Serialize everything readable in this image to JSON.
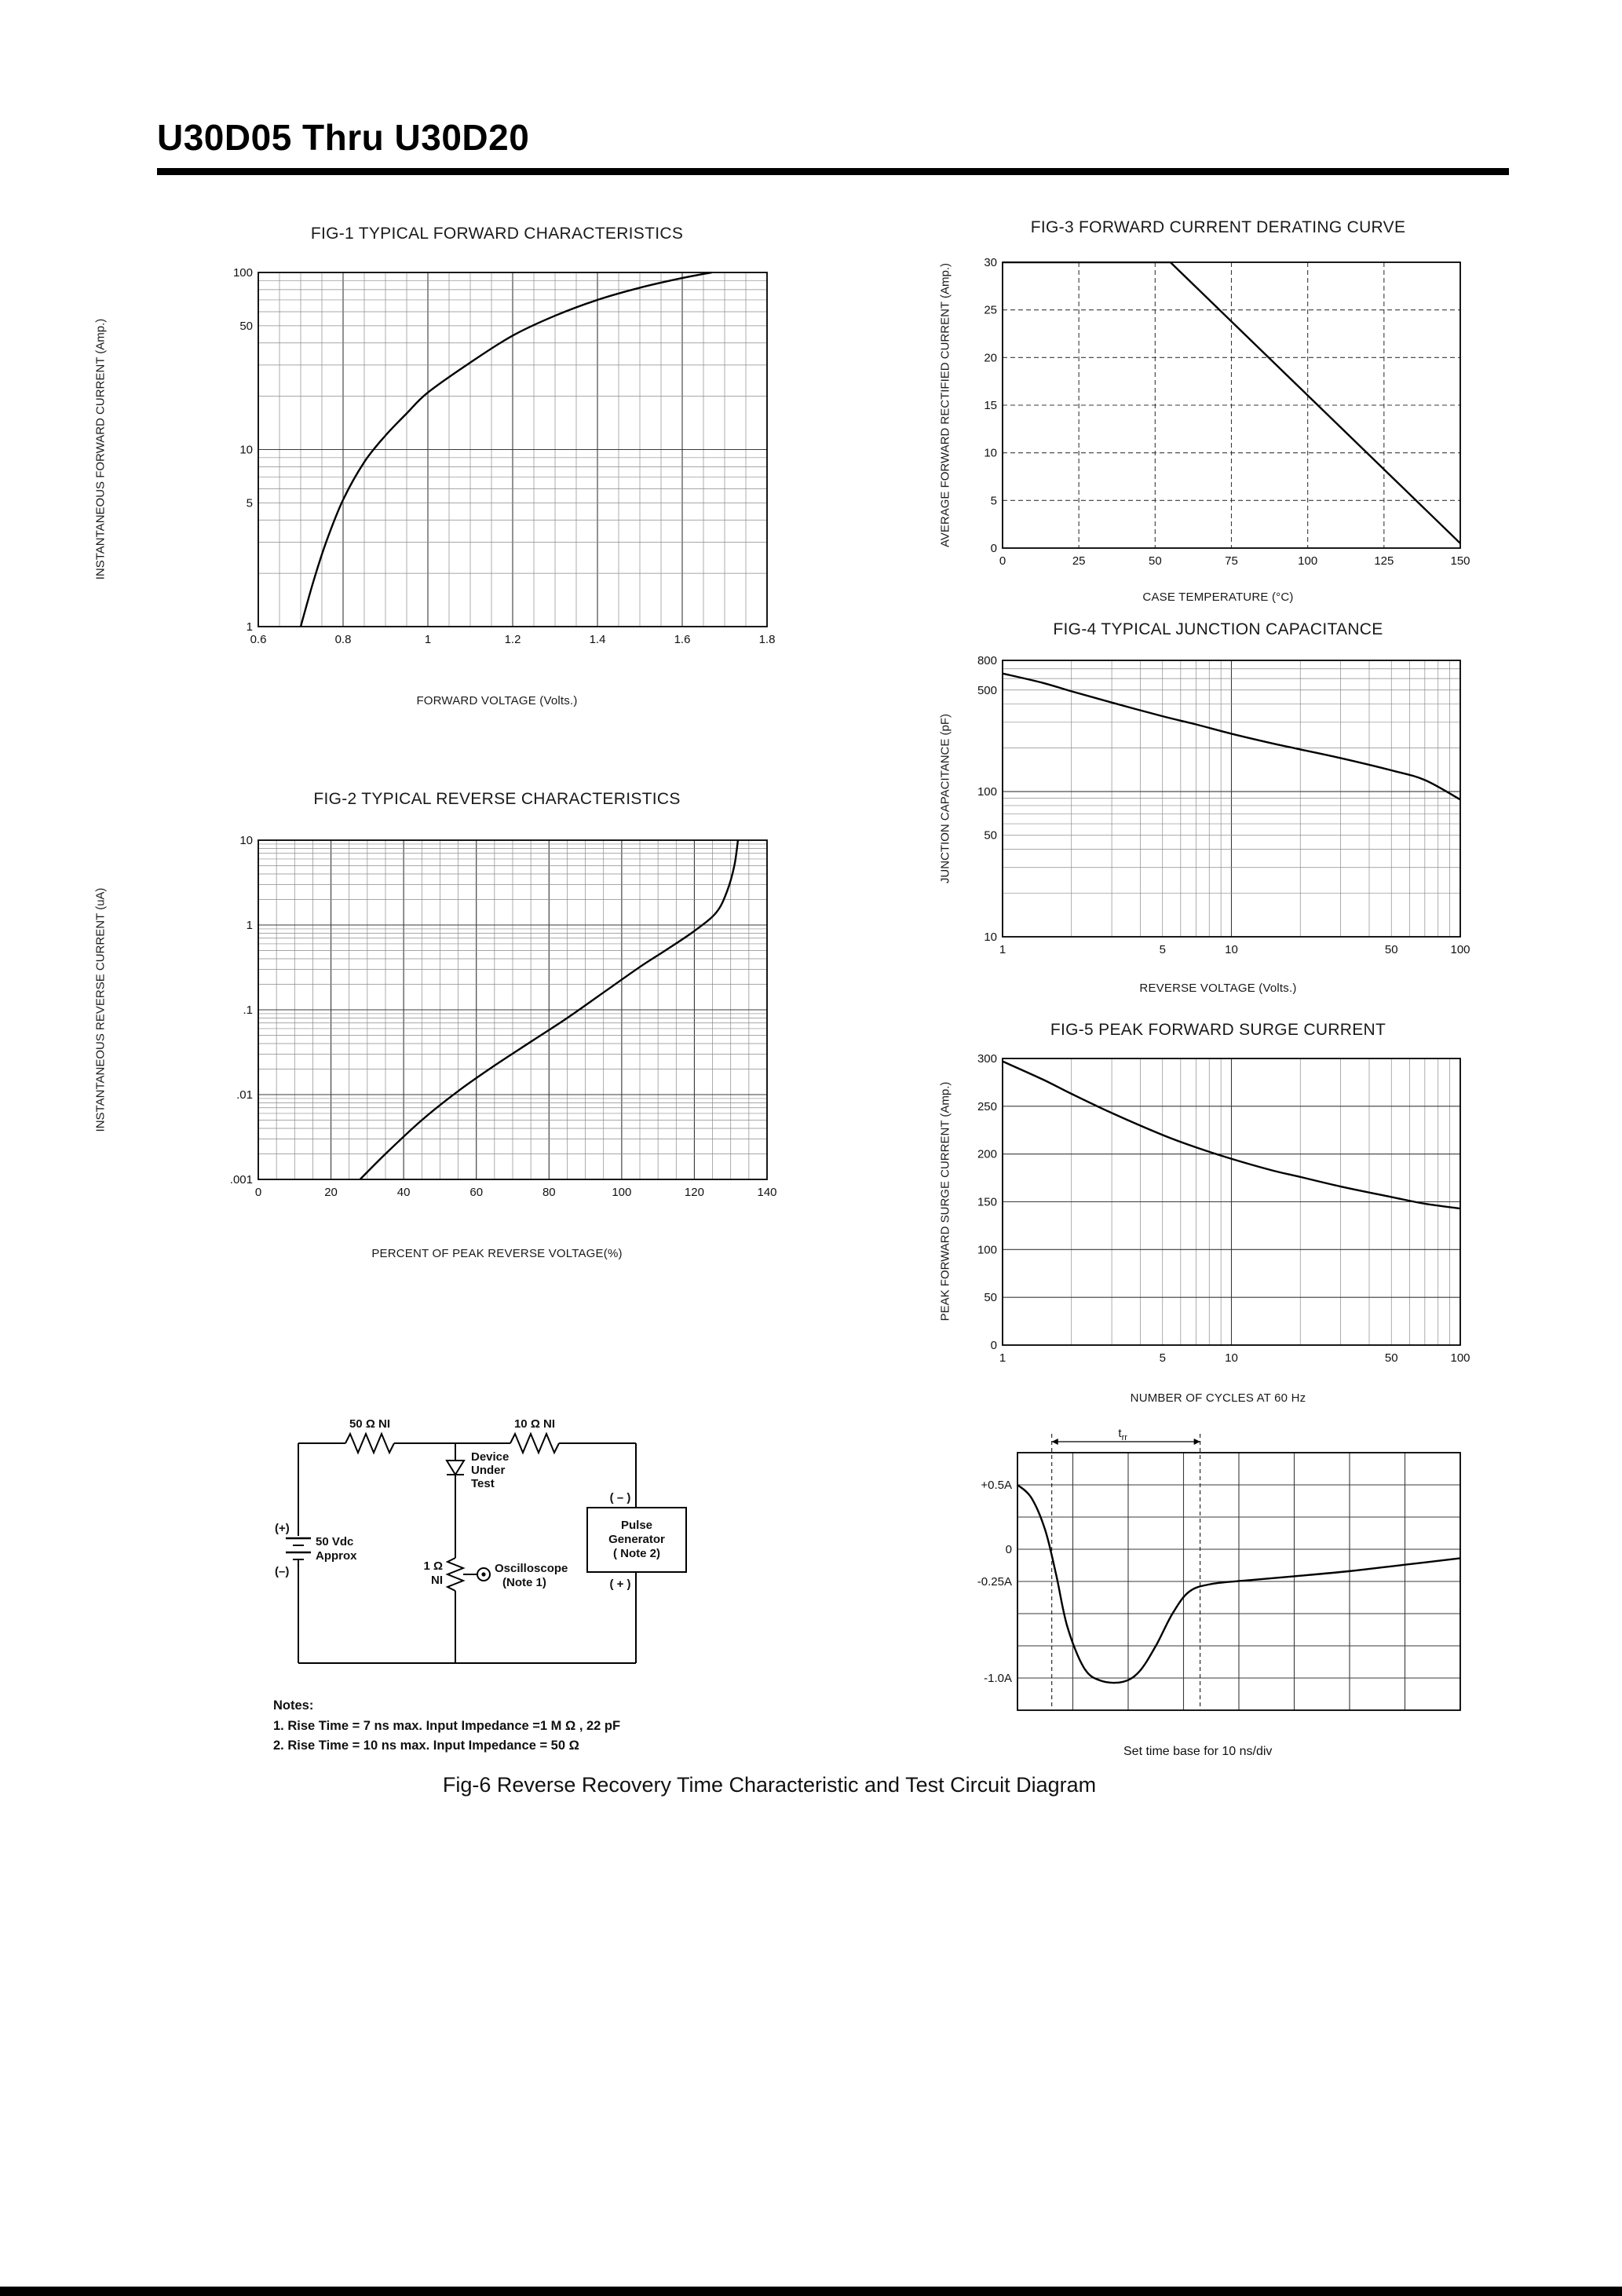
{
  "header": {
    "title": "U30D05 Thru U30D20"
  },
  "fig6": {
    "caption": "Fig-6 Reverse Recovery Time Characteristic and Test Circuit Diagram",
    "set_time_base": "Set time base for 10  ns/div"
  },
  "notes": {
    "heading": "Notes:",
    "line1": "1. Rise Time = 7 ns max. Input Impedance =1 M Ω , 22 pF",
    "line2": "2. Rise Time = 10 ns max. Input Impedance = 50 Ω"
  },
  "circuit": {
    "r1": "50 Ω  NI",
    "r2": "10 Ω  NI",
    "dut_line1": "Device",
    "dut_line2": "Under",
    "dut_line3": "Test",
    "plus": "(+)",
    "minus": "(–)",
    "vdc_line1": "50 Vdc",
    "vdc_line2": "Approx",
    "pg_minus": "( – )",
    "pg_line1": "Pulse",
    "pg_line2": "Generator",
    "pg_line3": "( Note 2)",
    "pg_plus": "( + )",
    "r3_line1": "1 Ω",
    "r3_line2": "NI",
    "osc_line1": "Oscilloscope",
    "osc_line2": "(Note 1)"
  },
  "chart_data": [
    {
      "id": "fig1",
      "type": "line",
      "title": "FIG-1 TYPICAL FORWARD CHARACTERISTICS",
      "xlabel": "FORWARD VOLTAGE (Volts.)",
      "ylabel": "INSTANTANEOUS FORWARD CURRENT (Amp.)",
      "x": {
        "scale": "linear",
        "min": 0.6,
        "max": 1.8,
        "grid": 0.2,
        "minor": 0.05,
        "ticks": [
          {
            "v": 0.6,
            "t": "0.6"
          },
          {
            "v": 0.8,
            "t": "0.8"
          },
          {
            "v": 1,
            "t": "1"
          },
          {
            "v": 1.2,
            "t": "1.2"
          },
          {
            "v": 1.4,
            "t": "1.4"
          },
          {
            "v": 1.6,
            "t": "1.6"
          },
          {
            "v": 1.8,
            "t": "1.8"
          }
        ]
      },
      "y": {
        "scale": "log",
        "min": 1,
        "max": 100,
        "ticks": [
          {
            "v": 100,
            "t": "100"
          },
          {
            "v": 50,
            "t": "50"
          },
          {
            "v": 10,
            "t": "10"
          },
          {
            "v": 5,
            "t": "5"
          },
          {
            "v": 1,
            "t": "1"
          }
        ]
      },
      "series": [
        {
          "name": "typical-forward-current",
          "points": [
            [
              0.7,
              1
            ],
            [
              0.73,
              1.8
            ],
            [
              0.76,
              3
            ],
            [
              0.8,
              5.2
            ],
            [
              0.85,
              8.5
            ],
            [
              0.9,
              12
            ],
            [
              0.95,
              16
            ],
            [
              1.0,
              21
            ],
            [
              1.1,
              31
            ],
            [
              1.2,
              44
            ],
            [
              1.3,
              57
            ],
            [
              1.4,
              70
            ],
            [
              1.5,
              82
            ],
            [
              1.6,
              93
            ],
            [
              1.67,
              100
            ]
          ]
        }
      ]
    },
    {
      "id": "fig2",
      "type": "line",
      "title": "FIG-2 TYPICAL REVERSE CHARACTERISTICS",
      "xlabel": "PERCENT OF PEAK REVERSE VOLTAGE(%)",
      "ylabel": "INSTANTANEOUS REVERSE CURRENT (uA)",
      "x": {
        "scale": "linear",
        "min": 0,
        "max": 140,
        "grid": 20,
        "minor": 5,
        "ticks": [
          {
            "v": 0,
            "t": "0"
          },
          {
            "v": 20,
            "t": "20"
          },
          {
            "v": 40,
            "t": "40"
          },
          {
            "v": 60,
            "t": "60"
          },
          {
            "v": 80,
            "t": "80"
          },
          {
            "v": 100,
            "t": "100"
          },
          {
            "v": 120,
            "t": "120"
          },
          {
            "v": 140,
            "t": "140"
          }
        ]
      },
      "y": {
        "scale": "log",
        "min": 0.001,
        "max": 10,
        "ticks": [
          {
            "v": 10,
            "t": "10"
          },
          {
            "v": 1,
            "t": "1"
          },
          {
            "v": 0.1,
            "t": ".1"
          },
          {
            "v": 0.01,
            "t": ".01"
          },
          {
            "v": 0.001,
            "t": ".001"
          }
        ]
      },
      "series": [
        {
          "name": "typical-reverse-current",
          "points": [
            [
              28,
              0.001
            ],
            [
              35,
              0.002
            ],
            [
              45,
              0.005
            ],
            [
              55,
              0.011
            ],
            [
              65,
              0.022
            ],
            [
              75,
              0.042
            ],
            [
              85,
              0.08
            ],
            [
              95,
              0.16
            ],
            [
              105,
              0.32
            ],
            [
              112,
              0.5
            ],
            [
              120,
              0.85
            ],
            [
              126,
              1.4
            ],
            [
              129,
              2.5
            ],
            [
              131,
              5
            ],
            [
              132,
              10
            ]
          ]
        }
      ]
    },
    {
      "id": "fig3",
      "type": "line",
      "grid_dash": true,
      "straight": true,
      "title": "FIG-3 FORWARD CURRENT DERATING CURVE",
      "xlabel": "CASE TEMPERATURE (°C)",
      "ylabel": "AVERAGE FORWARD RECTIFIED CURRENT (Amp.)",
      "x": {
        "scale": "linear",
        "min": 0,
        "max": 150,
        "grid": 25,
        "ticks": [
          {
            "v": 0,
            "t": "0"
          },
          {
            "v": 25,
            "t": "25"
          },
          {
            "v": 50,
            "t": "50"
          },
          {
            "v": 75,
            "t": "75"
          },
          {
            "v": 100,
            "t": "100"
          },
          {
            "v": 125,
            "t": "125"
          },
          {
            "v": 150,
            "t": "150"
          }
        ]
      },
      "y": {
        "scale": "linear",
        "min": 0,
        "max": 30,
        "grid": 5,
        "ticks": [
          {
            "v": 30,
            "t": "30"
          },
          {
            "v": 25,
            "t": "25"
          },
          {
            "v": 20,
            "t": "20"
          },
          {
            "v": 15,
            "t": "15"
          },
          {
            "v": 10,
            "t": "10"
          },
          {
            "v": 5,
            "t": "5"
          },
          {
            "v": 0,
            "t": "0"
          }
        ]
      },
      "series": [
        {
          "name": "derating-curve",
          "points": [
            [
              0,
              30
            ],
            [
              55,
              30
            ],
            [
              150,
              0.5
            ]
          ]
        }
      ]
    },
    {
      "id": "fig4",
      "type": "line",
      "title": "FIG-4 TYPICAL JUNCTION CAPACITANCE",
      "xlabel": "REVERSE VOLTAGE (Volts.)",
      "ylabel": "JUNCTION CAPACITANCE (pF)",
      "x": {
        "scale": "log",
        "min": 1,
        "max": 100,
        "ticks": [
          {
            "v": 1,
            "t": "1"
          },
          {
            "v": 5,
            "t": "5"
          },
          {
            "v": 10,
            "t": "10"
          },
          {
            "v": 50,
            "t": "50"
          },
          {
            "v": 100,
            "t": "100"
          }
        ]
      },
      "y": {
        "scale": "log",
        "min": 10,
        "max": 800,
        "ticks": [
          {
            "v": 800,
            "t": "800"
          },
          {
            "v": 500,
            "t": "500"
          },
          {
            "v": 100,
            "t": "100"
          },
          {
            "v": 50,
            "t": "50"
          },
          {
            "v": 10,
            "t": "10"
          }
        ]
      },
      "series": [
        {
          "name": "junction-capacitance",
          "points": [
            [
              1,
              650
            ],
            [
              1.5,
              560
            ],
            [
              2,
              490
            ],
            [
              3,
              410
            ],
            [
              5,
              330
            ],
            [
              7,
              290
            ],
            [
              10,
              250
            ],
            [
              15,
              215
            ],
            [
              20,
              195
            ],
            [
              30,
              170
            ],
            [
              50,
              140
            ],
            [
              70,
              120
            ],
            [
              100,
              88
            ]
          ]
        }
      ]
    },
    {
      "id": "fig5",
      "type": "line",
      "title": "FIG-5 PEAK FORWARD SURGE CURRENT",
      "xlabel": "NUMBER OF CYCLES AT 60 Hz",
      "ylabel": "PEAK FORWARD SURGE CURRENT (Amp.)",
      "x": {
        "scale": "log",
        "min": 1,
        "max": 100,
        "ticks": [
          {
            "v": 1,
            "t": "1"
          },
          {
            "v": 5,
            "t": "5"
          },
          {
            "v": 10,
            "t": "10"
          },
          {
            "v": 50,
            "t": "50"
          },
          {
            "v": 100,
            "t": "100"
          }
        ]
      },
      "y": {
        "scale": "linear",
        "min": 0,
        "max": 300,
        "grid": 50,
        "ticks": [
          {
            "v": 300,
            "t": "300"
          },
          {
            "v": 250,
            "t": "250"
          },
          {
            "v": 200,
            "t": "200"
          },
          {
            "v": 150,
            "t": "150"
          },
          {
            "v": 100,
            "t": "100"
          },
          {
            "v": 50,
            "t": "50"
          },
          {
            "v": 0,
            "t": "0"
          }
        ]
      },
      "series": [
        {
          "name": "surge-current",
          "points": [
            [
              1,
              297
            ],
            [
              1.5,
              278
            ],
            [
              2,
              263
            ],
            [
              3,
              243
            ],
            [
              5,
              220
            ],
            [
              7,
              207
            ],
            [
              10,
              195
            ],
            [
              15,
              183
            ],
            [
              20,
              176
            ],
            [
              30,
              166
            ],
            [
              50,
              155
            ],
            [
              70,
              148
            ],
            [
              100,
              143
            ]
          ]
        }
      ]
    },
    {
      "id": "fig6wave",
      "type": "line",
      "title": "",
      "xlabel": "",
      "ylabel": "",
      "x": {
        "scale": "linear",
        "min": 0,
        "max": 8,
        "grid": 1,
        "ticks": []
      },
      "y": {
        "scale": "linear",
        "min": -1.25,
        "max": 0.75,
        "grid": 0.25,
        "ticks": [
          {
            "v": 0.5,
            "t": "+0.5A"
          },
          {
            "v": 0,
            "t": "0"
          },
          {
            "v": -0.25,
            "t": "-0.25A"
          },
          {
            "v": -1,
            "t": "-1.0A"
          }
        ]
      },
      "series": [
        {
          "name": "reverse-recovery-waveform",
          "points": [
            [
              0,
              0.5
            ],
            [
              0.25,
              0.4
            ],
            [
              0.5,
              0.15
            ],
            [
              0.7,
              -0.2
            ],
            [
              0.9,
              -0.6
            ],
            [
              1.2,
              -0.92
            ],
            [
              1.5,
              -1.02
            ],
            [
              1.9,
              -1.03
            ],
            [
              2.2,
              -0.95
            ],
            [
              2.5,
              -0.75
            ],
            [
              2.8,
              -0.5
            ],
            [
              3.1,
              -0.33
            ],
            [
              3.5,
              -0.27
            ],
            [
              4.2,
              -0.24
            ],
            [
              5,
              -0.21
            ],
            [
              6,
              -0.17
            ],
            [
              7,
              -0.12
            ],
            [
              8,
              -0.07
            ]
          ]
        }
      ],
      "annotations": [
        {
          "type": "vdash",
          "x": 0.62
        },
        {
          "type": "vdash",
          "x": 3.3
        },
        {
          "type": "span",
          "x1": 0.62,
          "x2": 3.3,
          "label_main": "t",
          "label_sub": "rr"
        }
      ]
    }
  ]
}
